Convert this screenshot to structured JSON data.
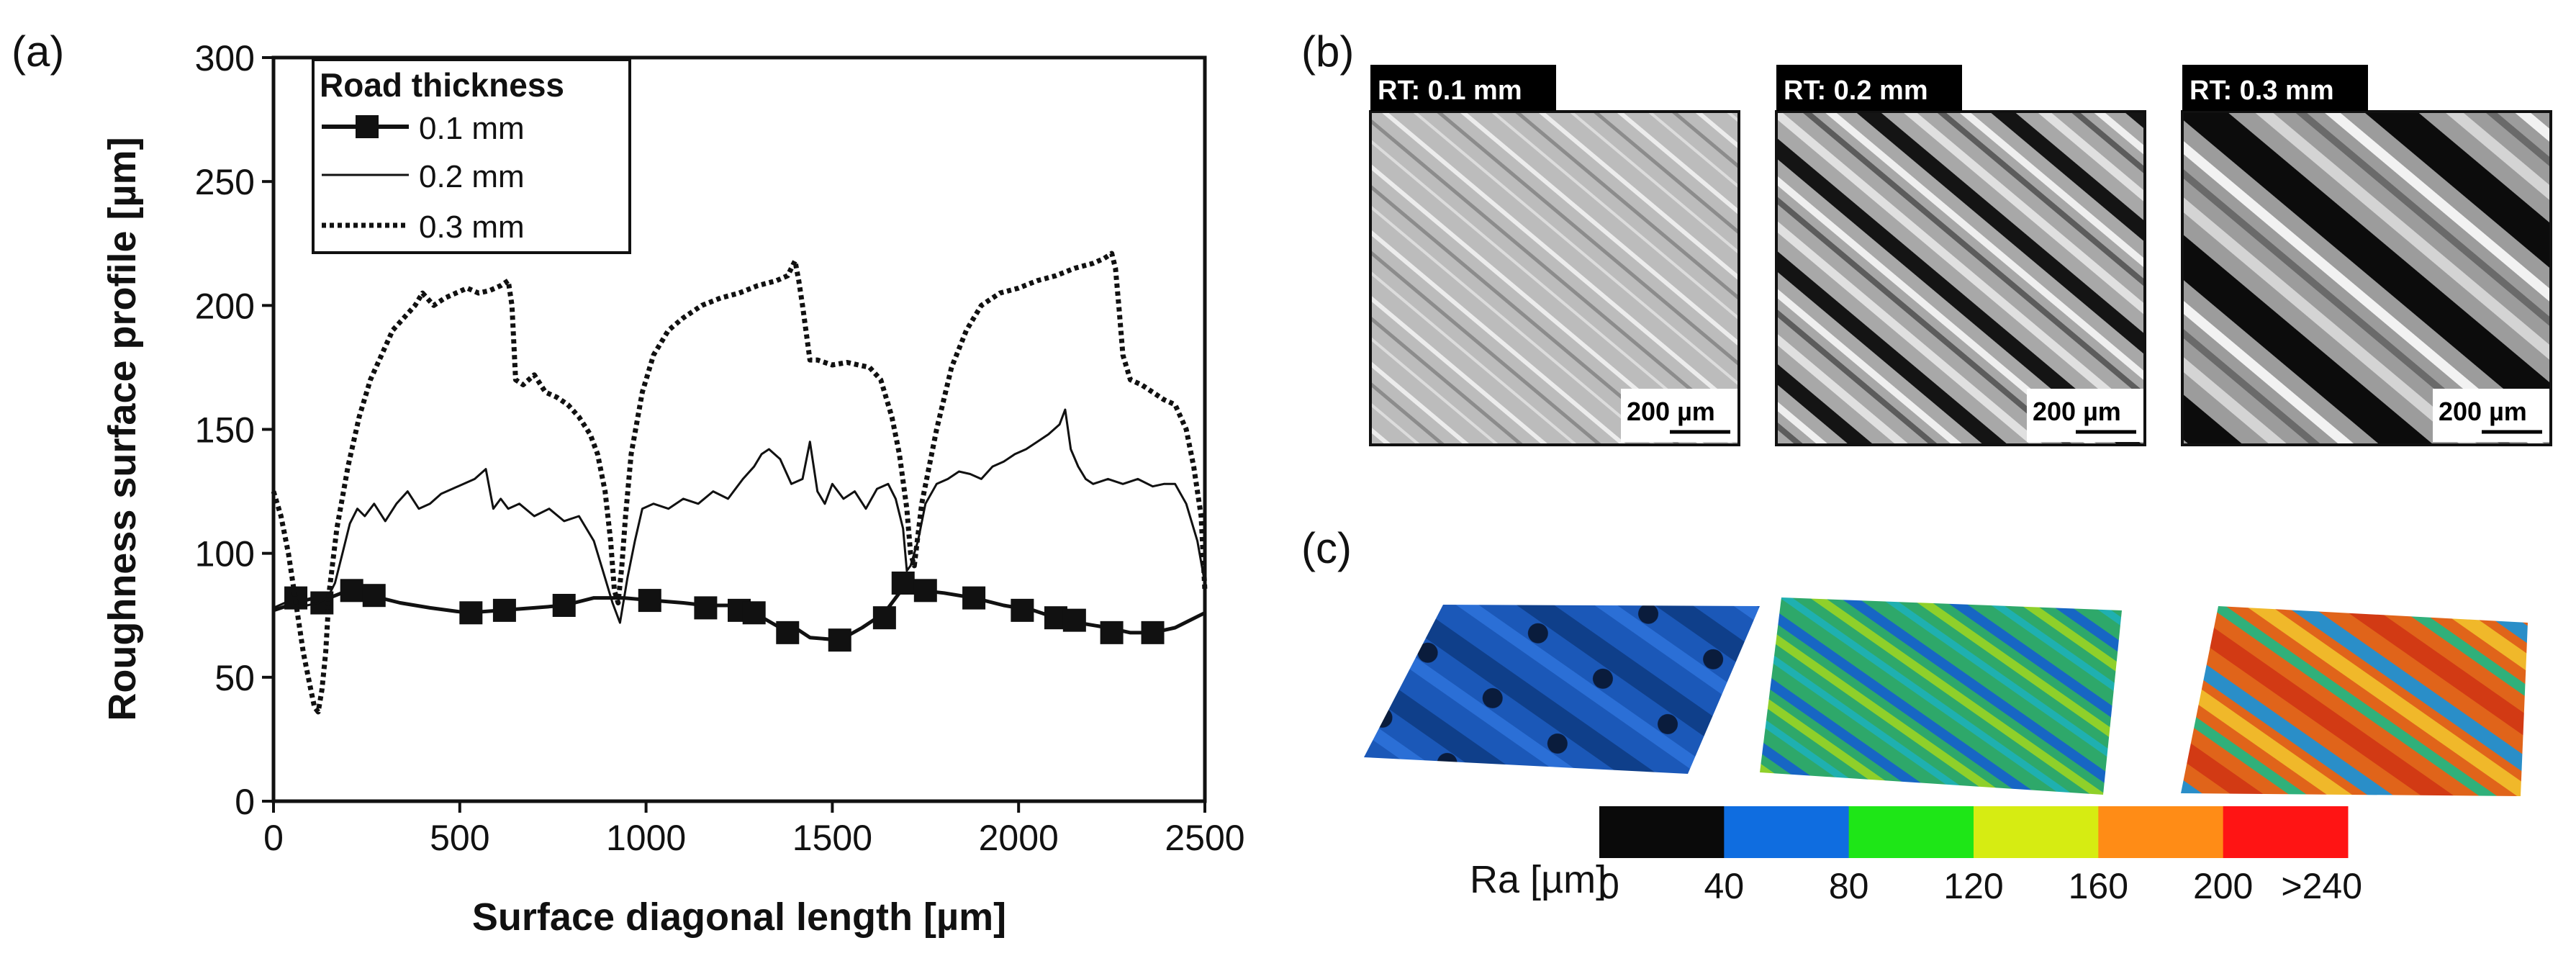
{
  "panel_labels": {
    "a": "(a)",
    "b": "(b)",
    "c": "(c)"
  },
  "chart_data": [
    {
      "type": "line",
      "xlabel": "Surface diagonal length [µm]",
      "ylabel": "Roughness surface profile [µm]",
      "xlim": [
        0,
        2500
      ],
      "ylim": [
        0,
        300
      ],
      "xticks": [
        0,
        500,
        1000,
        1500,
        2000,
        2500
      ],
      "yticks": [
        0,
        50,
        100,
        150,
        200,
        250,
        300
      ],
      "legend": {
        "title": "Road thickness",
        "placement": "top-left"
      },
      "series": [
        {
          "name": "0.1 mm",
          "style": "solid-square-markers",
          "x": [
            0,
            60,
            110,
            130,
            150,
            200,
            260,
            340,
            420,
            520,
            610,
            700,
            780,
            860,
            940,
            1020,
            1100,
            1160,
            1220,
            1290,
            1360,
            1410,
            1440,
            1520,
            1580,
            1640,
            1700,
            1740,
            1800,
            1880,
            1960,
            2040,
            2100,
            2160,
            2240,
            2300,
            2360,
            2420,
            2500
          ],
          "y": [
            77,
            80,
            82,
            80,
            82,
            85,
            83,
            80,
            78,
            76,
            77,
            78,
            79,
            82,
            82,
            81,
            80,
            79,
            79,
            76,
            70,
            69,
            66,
            65,
            70,
            76,
            88,
            85,
            84,
            82,
            79,
            77,
            74,
            72,
            70,
            68,
            68,
            70,
            76
          ],
          "marker_x": [
            60,
            130,
            210,
            270,
            530,
            620,
            780,
            1010,
            1160,
            1250,
            1290,
            1380,
            1520,
            1640,
            1690,
            1750,
            1880,
            2010,
            2100,
            2150,
            2250,
            2360
          ],
          "marker_y": [
            82,
            80,
            85,
            83,
            76,
            77,
            79,
            81,
            78,
            77,
            76,
            68,
            65,
            74,
            88,
            85,
            82,
            77,
            74,
            73,
            68,
            68
          ]
        },
        {
          "name": "0.2 mm",
          "style": "thin-solid",
          "x": [
            0,
            30,
            60,
            90,
            120,
            145,
            165,
            185,
            205,
            225,
            245,
            270,
            300,
            330,
            360,
            390,
            420,
            450,
            480,
            510,
            540,
            570,
            590,
            610,
            630,
            660,
            700,
            740,
            780,
            820,
            860,
            890,
            910,
            930,
            950,
            970,
            990,
            1020,
            1060,
            1100,
            1140,
            1180,
            1220,
            1260,
            1290,
            1310,
            1330,
            1360,
            1390,
            1420,
            1440,
            1460,
            1480,
            1500,
            1530,
            1560,
            1590,
            1620,
            1650,
            1670,
            1690,
            1700,
            1710,
            1730,
            1750,
            1780,
            1810,
            1840,
            1870,
            1900,
            1930,
            1960,
            1990,
            2020,
            2050,
            2080,
            2110,
            2125,
            2140,
            2160,
            2180,
            2200,
            2240,
            2280,
            2320,
            2360,
            2390,
            2420,
            2450,
            2480,
            2500
          ],
          "y": [
            78,
            80,
            80,
            79,
            80,
            82,
            88,
            100,
            112,
            118,
            115,
            120,
            113,
            120,
            125,
            118,
            120,
            124,
            126,
            128,
            130,
            134,
            118,
            122,
            118,
            120,
            115,
            118,
            113,
            115,
            105,
            90,
            80,
            72,
            90,
            105,
            118,
            120,
            118,
            122,
            120,
            125,
            122,
            130,
            135,
            140,
            142,
            138,
            128,
            130,
            145,
            125,
            120,
            128,
            122,
            125,
            118,
            126,
            128,
            122,
            110,
            93,
            95,
            105,
            120,
            128,
            130,
            133,
            132,
            130,
            135,
            137,
            140,
            142,
            145,
            148,
            152,
            158,
            142,
            135,
            130,
            128,
            130,
            128,
            130,
            127,
            128,
            128,
            120,
            105,
            88
          ]
        },
        {
          "name": "0.3 mm",
          "style": "dotted",
          "x": [
            0,
            20,
            40,
            60,
            80,
            100,
            110,
            120,
            130,
            140,
            150,
            170,
            200,
            230,
            260,
            290,
            320,
            350,
            380,
            400,
            430,
            460,
            490,
            520,
            550,
            580,
            610,
            630,
            640,
            650,
            670,
            700,
            730,
            760,
            790,
            820,
            850,
            870,
            890,
            905,
            915,
            925,
            935,
            945,
            960,
            990,
            1020,
            1060,
            1100,
            1150,
            1200,
            1250,
            1300,
            1350,
            1380,
            1400,
            1410,
            1420,
            1440,
            1460,
            1500,
            1540,
            1570,
            1600,
            1630,
            1660,
            1680,
            1700,
            1710,
            1720,
            1740,
            1780,
            1820,
            1860,
            1900,
            1950,
            2000,
            2050,
            2100,
            2150,
            2200,
            2230,
            2250,
            2260,
            2270,
            2280,
            2300,
            2330,
            2360,
            2390,
            2420,
            2450,
            2470,
            2490,
            2500
          ],
          "y": [
            125,
            115,
            100,
            80,
            60,
            45,
            38,
            36,
            45,
            60,
            85,
            110,
            135,
            155,
            170,
            180,
            190,
            195,
            200,
            205,
            200,
            203,
            205,
            207,
            205,
            206,
            208,
            210,
            200,
            170,
            168,
            172,
            165,
            163,
            160,
            155,
            148,
            140,
            125,
            105,
            85,
            80,
            95,
            115,
            140,
            165,
            180,
            190,
            195,
            200,
            203,
            205,
            208,
            210,
            212,
            218,
            210,
            200,
            178,
            178,
            176,
            177,
            176,
            175,
            170,
            155,
            140,
            118,
            100,
            95,
            120,
            150,
            175,
            190,
            200,
            205,
            207,
            210,
            212,
            215,
            217,
            219,
            221,
            215,
            198,
            180,
            170,
            168,
            165,
            162,
            160,
            150,
            135,
            115,
            85
          ]
        }
      ]
    },
    {
      "type": "other",
      "panel": "b",
      "images": [
        {
          "tag": "RT: 0.1 mm",
          "scalebar": "200 µm"
        },
        {
          "tag": "RT: 0.2 mm",
          "scalebar": "200 µm"
        },
        {
          "tag": "RT: 0.3 mm",
          "scalebar": "200 µm"
        }
      ]
    },
    {
      "type": "heatmap",
      "panel": "c",
      "colorbar": {
        "label": "Ra [µm]",
        "colors": [
          "#0a0a0a",
          "#0f6de0",
          "#1ee617",
          "#d6ec12",
          "#ff8c16",
          "#ff1414"
        ],
        "tick_labels": [
          "0",
          "40",
          "80",
          "120",
          "160",
          "200",
          ">240"
        ]
      },
      "surfaces": [
        {
          "dominant_color": "#1b58b8"
        },
        {
          "dominant_color": "#28a66a"
        },
        {
          "dominant_color": "#d8601c"
        }
      ]
    }
  ]
}
